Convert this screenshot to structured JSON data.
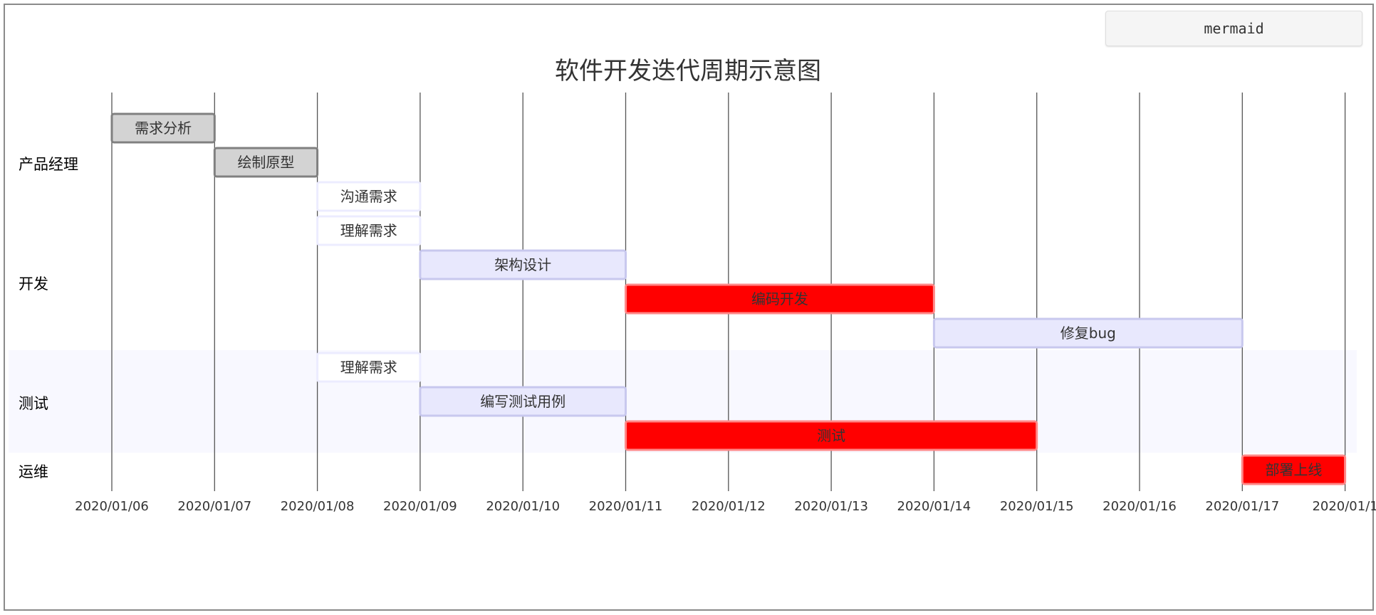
{
  "toolbar": {
    "mermaid_label": "mermaid"
  },
  "chart_data": {
    "type": "gantt",
    "title": "软件开发迭代周期示意图",
    "date_format": "YYYY/MM/DD",
    "start_date": "2020/01/06",
    "tick_labels": [
      "2020/01/06",
      "2020/01/07",
      "2020/01/08",
      "2020/01/09",
      "2020/01/10",
      "2020/01/11",
      "2020/01/12",
      "2020/01/13",
      "2020/01/14",
      "2020/01/15",
      "2020/01/16",
      "2020/01/17",
      "2020/01/1"
    ],
    "sections": [
      {
        "name": "产品经理",
        "shaded": false,
        "tasks": [
          {
            "label": "需求分析",
            "start": 0,
            "duration": 1,
            "status": "done"
          },
          {
            "label": "绘制原型",
            "start": 1,
            "duration": 1,
            "status": "done"
          },
          {
            "label": "沟通需求",
            "start": 2,
            "duration": 1,
            "status": "active"
          }
        ]
      },
      {
        "name": "开发",
        "shaded": false,
        "tasks": [
          {
            "label": "理解需求",
            "start": 2,
            "duration": 1,
            "status": "active"
          },
          {
            "label": "架构设计",
            "start": 3,
            "duration": 2,
            "status": "normal"
          },
          {
            "label": "编码开发",
            "start": 5,
            "duration": 3,
            "status": "crit"
          },
          {
            "label": "修复bug",
            "start": 8,
            "duration": 3,
            "status": "normal"
          }
        ]
      },
      {
        "name": "测试",
        "shaded": true,
        "tasks": [
          {
            "label": "理解需求",
            "start": 2,
            "duration": 1,
            "status": "active"
          },
          {
            "label": "编写测试用例",
            "start": 3,
            "duration": 2,
            "status": "normal"
          },
          {
            "label": "测试",
            "start": 5,
            "duration": 4,
            "status": "crit"
          }
        ]
      },
      {
        "name": "运维",
        "shaded": false,
        "tasks": [
          {
            "label": "部署上线",
            "start": 11,
            "duration": 1,
            "status": "crit"
          }
        ]
      }
    ],
    "colors": {
      "done_fill": "#d3d3d3",
      "done_stroke": "#808080",
      "active_fill": "#ffffff",
      "active_stroke": "#ececff",
      "normal_fill": "#e8e8fd",
      "normal_stroke": "#c8c8ee",
      "crit_fill": "#ff0000",
      "crit_stroke": "#ff8888",
      "section_shade": "#f8f8ff",
      "grid": "#555555",
      "title": "#333333"
    }
  }
}
